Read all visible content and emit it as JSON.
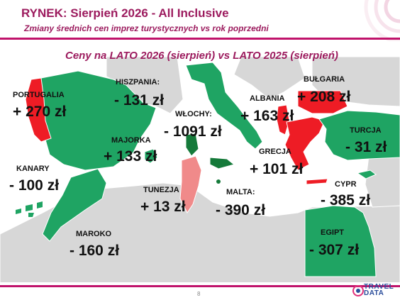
{
  "header": {
    "title": "RYNEK: Sierpień 2026 - All Inclusive",
    "subtitle": "Zmiany średnich cen imprez turystycznych vs rok poprzedni"
  },
  "map": {
    "heading": "Ceny na LATO 2026 (sierpień) vs  LATO 2025 (sierpień)",
    "legend_colors": {
      "decrease": "#1fa463",
      "decrease_dark": "#157a3a",
      "increase": "#ee1c25",
      "slight_increase": "#f08a8a",
      "land_neutral": "#d7d7d7",
      "sea": "#ffffff"
    },
    "countries": {
      "portugalia": {
        "name": "PORTUGALIA",
        "change": "+ 270 zł"
      },
      "hiszpania": {
        "name": "HISZPANIA:",
        "change": "- 131 zł"
      },
      "wlochy": {
        "name": "WŁOCHY:",
        "change": "- 1091 zł"
      },
      "albania": {
        "name": "ALBANIA",
        "change": "+ 163 zł"
      },
      "bulgaria": {
        "name": "BUŁGARIA",
        "change": "+ 208 zł"
      },
      "majorka": {
        "name": "MAJORKA",
        "change": "+ 133 zł"
      },
      "turcja": {
        "name": "TURCJA",
        "change": "- 31 zł"
      },
      "grecja": {
        "name": "GRECJA",
        "change": "+ 101 zł"
      },
      "kanary": {
        "name": "KANARY",
        "change": "- 100 zł"
      },
      "tunezja": {
        "name": "TUNEZJA",
        "change": "+ 13 zł"
      },
      "malta": {
        "name": "MALTA:",
        "change": "- 390 zł"
      },
      "cypr": {
        "name": "CYPR",
        "change": "- 385 zł"
      },
      "maroko": {
        "name": "MAROKO",
        "change": "- 160 zł"
      },
      "egipt": {
        "name": "EGIPT",
        "change": "- 307 zł"
      }
    }
  },
  "footer": {
    "page_number": "8",
    "logo_line1": "TRAVEL",
    "logo_line2": "DATA"
  }
}
